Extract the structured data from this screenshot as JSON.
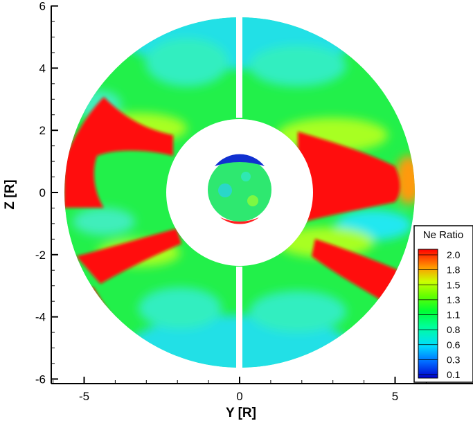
{
  "chart_data": {
    "type": "heatmap",
    "xlabel": "Y [R]",
    "ylabel": "Z [R]",
    "xlim": [
      -6.2,
      6.2
    ],
    "ylim": [
      -6.3,
      6.3
    ],
    "x_ticks": [
      {
        "value": -5,
        "label": "-5"
      },
      {
        "value": 0,
        "label": "0"
      },
      {
        "value": 5,
        "label": "5"
      }
    ],
    "y_ticks": [
      {
        "value": 6,
        "label": "6"
      },
      {
        "value": 4,
        "label": "4"
      },
      {
        "value": 2,
        "label": "2"
      },
      {
        "value": 0,
        "label": "0"
      },
      {
        "value": -2,
        "label": "-2"
      },
      {
        "value": -4,
        "label": "-4"
      },
      {
        "value": -6,
        "label": "-6"
      }
    ],
    "domain": {
      "outer_radius": 5.65,
      "gap_inner_radius": 2.3,
      "planet_radius": 1.0
    },
    "legend": {
      "title": "Ne Ratio",
      "placement": "bottom-right",
      "levels": [
        {
          "value": 2.0,
          "label": "2.0",
          "color": "#ff0000"
        },
        {
          "value": 1.8,
          "label": "1.8",
          "color": "#ff9900"
        },
        {
          "value": 1.5,
          "label": "1.5",
          "color": "#ccff00"
        },
        {
          "value": 1.3,
          "label": "1.3",
          "color": "#66ff00"
        },
        {
          "value": 1.1,
          "label": "1.1",
          "color": "#00ff33"
        },
        {
          "value": 0.8,
          "label": "0.8",
          "color": "#00ffaa"
        },
        {
          "value": 0.6,
          "label": "0.6",
          "color": "#00eeff"
        },
        {
          "value": 0.3,
          "label": "0.3",
          "color": "#0088ff"
        },
        {
          "value": 0.1,
          "label": "0.1",
          "color": "#0000cc"
        }
      ]
    }
  }
}
